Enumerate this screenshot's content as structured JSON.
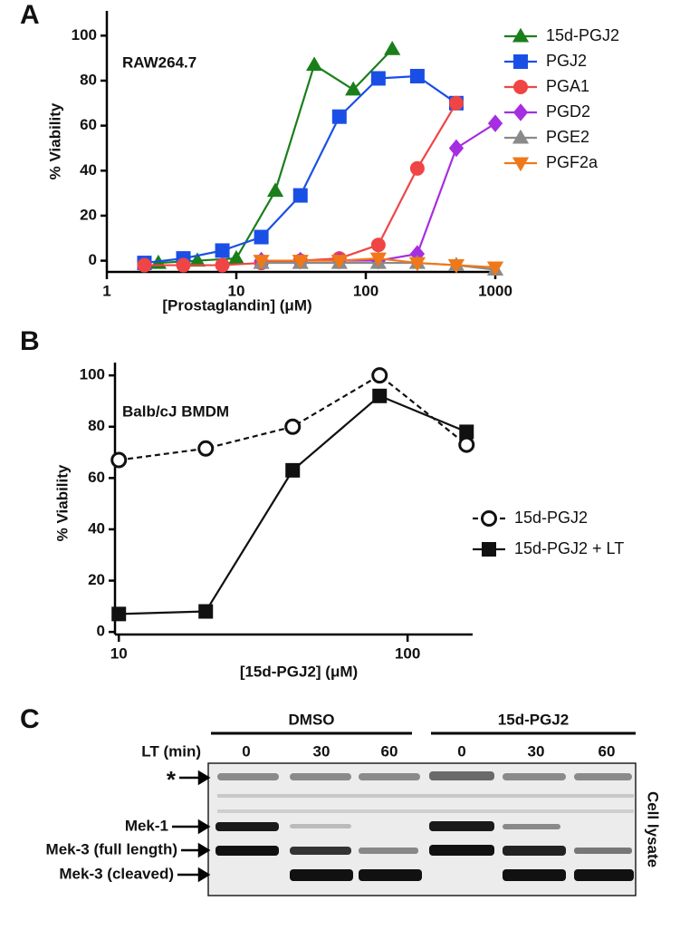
{
  "chart_data": [
    {
      "type": "line",
      "panel": "A",
      "annotation": "RAW264.7",
      "xlabel": "[Prostaglandin] (μM)",
      "ylabel": "% Viability",
      "xscale": "log",
      "xlim": [
        1,
        1000
      ],
      "xticks": [
        1,
        10,
        100,
        1000
      ],
      "ylim": [
        -5,
        111
      ],
      "yticks": [
        0,
        20,
        40,
        60,
        80,
        100
      ],
      "legend_position": "upper right",
      "series": [
        {
          "name": "15d-PGJ2",
          "color": "#1a7f1a",
          "marker": "triangle",
          "marker_fill": true,
          "line_style": "solid",
          "x": [
            2.5,
            5,
            10,
            20,
            40,
            80,
            160
          ],
          "values": [
            -1,
            0,
            1,
            31,
            87,
            76,
            94
          ]
        },
        {
          "name": "PGJ2",
          "color": "#1a4fe6",
          "marker": "square",
          "marker_fill": true,
          "line_style": "solid",
          "x": [
            1.95,
            3.9,
            7.8,
            15.6,
            31.25,
            62.5,
            125,
            250,
            500
          ],
          "values": [
            -1,
            1,
            4.5,
            10.5,
            29,
            64,
            81,
            82,
            70
          ]
        },
        {
          "name": "PGA1",
          "color": "#f04545",
          "marker": "circle",
          "marker_fill": true,
          "line_style": "solid",
          "x": [
            1.95,
            3.9,
            7.8,
            15.6,
            31.25,
            62.5,
            125,
            250,
            500
          ],
          "values": [
            -2,
            -2,
            -2,
            -1,
            0,
            1,
            7,
            41,
            70
          ]
        },
        {
          "name": "PGD2",
          "color": "#a62ee0",
          "marker": "diamond",
          "marker_fill": true,
          "line_style": "solid",
          "x": [
            15.6,
            31.25,
            62.5,
            125,
            250,
            500,
            1000
          ],
          "values": [
            0,
            0,
            0,
            0,
            3,
            50,
            61
          ]
        },
        {
          "name": "PGE2",
          "color": "#8a8a8a",
          "marker": "triangle",
          "marker_fill": true,
          "line_style": "solid",
          "x": [
            15.6,
            31.25,
            62.5,
            125,
            250,
            500,
            1000
          ],
          "values": [
            -1,
            -1,
            -1,
            -1,
            -1,
            -2,
            -4
          ]
        },
        {
          "name": "PGF2a",
          "color": "#f07818",
          "marker": "triangle-down",
          "marker_fill": true,
          "line_style": "solid",
          "x": [
            15.6,
            31.25,
            62.5,
            125,
            250,
            500,
            1000
          ],
          "values": [
            0,
            0,
            0,
            1,
            -1,
            -2,
            -3
          ]
        }
      ]
    },
    {
      "type": "line",
      "panel": "B",
      "annotation": "Balb/cJ BMDM",
      "xlabel": "[15d-PGJ2] (μM)",
      "ylabel": "% Viability",
      "xscale": "log",
      "xlim": [
        9.7,
        168
      ],
      "xticks": [
        10,
        100
      ],
      "ylim": [
        -1,
        105
      ],
      "yticks": [
        0,
        20,
        40,
        60,
        80,
        100
      ],
      "legend_position": "center right",
      "series": [
        {
          "name": "15d-PGJ2",
          "color": "#111111",
          "marker": "circle",
          "marker_fill": false,
          "line_style": "dashed",
          "x": [
            10,
            20,
            40,
            80,
            160
          ],
          "values": [
            67,
            71.5,
            80,
            100,
            73
          ]
        },
        {
          "name": "15d-PGJ2 + LT",
          "color": "#111111",
          "marker": "square",
          "marker_fill": true,
          "line_style": "solid",
          "x": [
            10,
            20,
            40,
            80,
            160
          ],
          "values": [
            7,
            8,
            63,
            92,
            78
          ]
        }
      ]
    }
  ],
  "blot": {
    "panel": "C",
    "groups": [
      "DMSO",
      "15d-PGJ2"
    ],
    "lt_label": "LT (min)",
    "timepoints": [
      "0",
      "30",
      "60",
      "0",
      "30",
      "60"
    ],
    "bands": [
      "*",
      "Mek-1",
      "Mek-3 (full length)",
      "Mek-3 (cleaved)"
    ],
    "side_label": "Cell lysate"
  }
}
